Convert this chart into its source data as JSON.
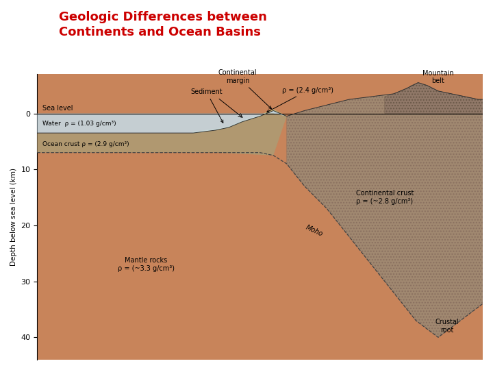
{
  "title_line1": "Geologic Differences between",
  "title_line2": "Continents and Ocean Basins",
  "title_color": "#cc0000",
  "title_fontsize": 13,
  "bg_color": "#ffffff",
  "fig_width": 7.2,
  "fig_height": 5.4,
  "dpi": 100,
  "colors": {
    "mantle": "#c8845a",
    "ocean_crust": "#b09870",
    "continental_crust": "#a08870",
    "sediment": "#dfd090",
    "water": "#c5dce8",
    "mountain": "#907868",
    "border": "#333333"
  },
  "ylabel": "Depth below sea level (km)",
  "yticks": [
    0,
    10,
    20,
    30,
    40
  ],
  "annotations": {
    "sea_level": "Sea level",
    "water": "Water  ρ = (1.03 g/cm³)",
    "ocean_crust": "Ocean crust ρ = (2.9 g/cm³)",
    "mantle": "Mantle rocks\nρ = (~3.3 g/cm³)",
    "cont_crust": "Continental crust\nρ = (~2.8 g/cm³)",
    "moho": "Moho",
    "sediment": "Sediment",
    "rho24": "ρ = (2.4 g/cm³)",
    "cont_margin": "Continental\nmargin",
    "mountain_belt": "Mountain\nbelt",
    "crustal_root": "Crustal\nroot"
  }
}
